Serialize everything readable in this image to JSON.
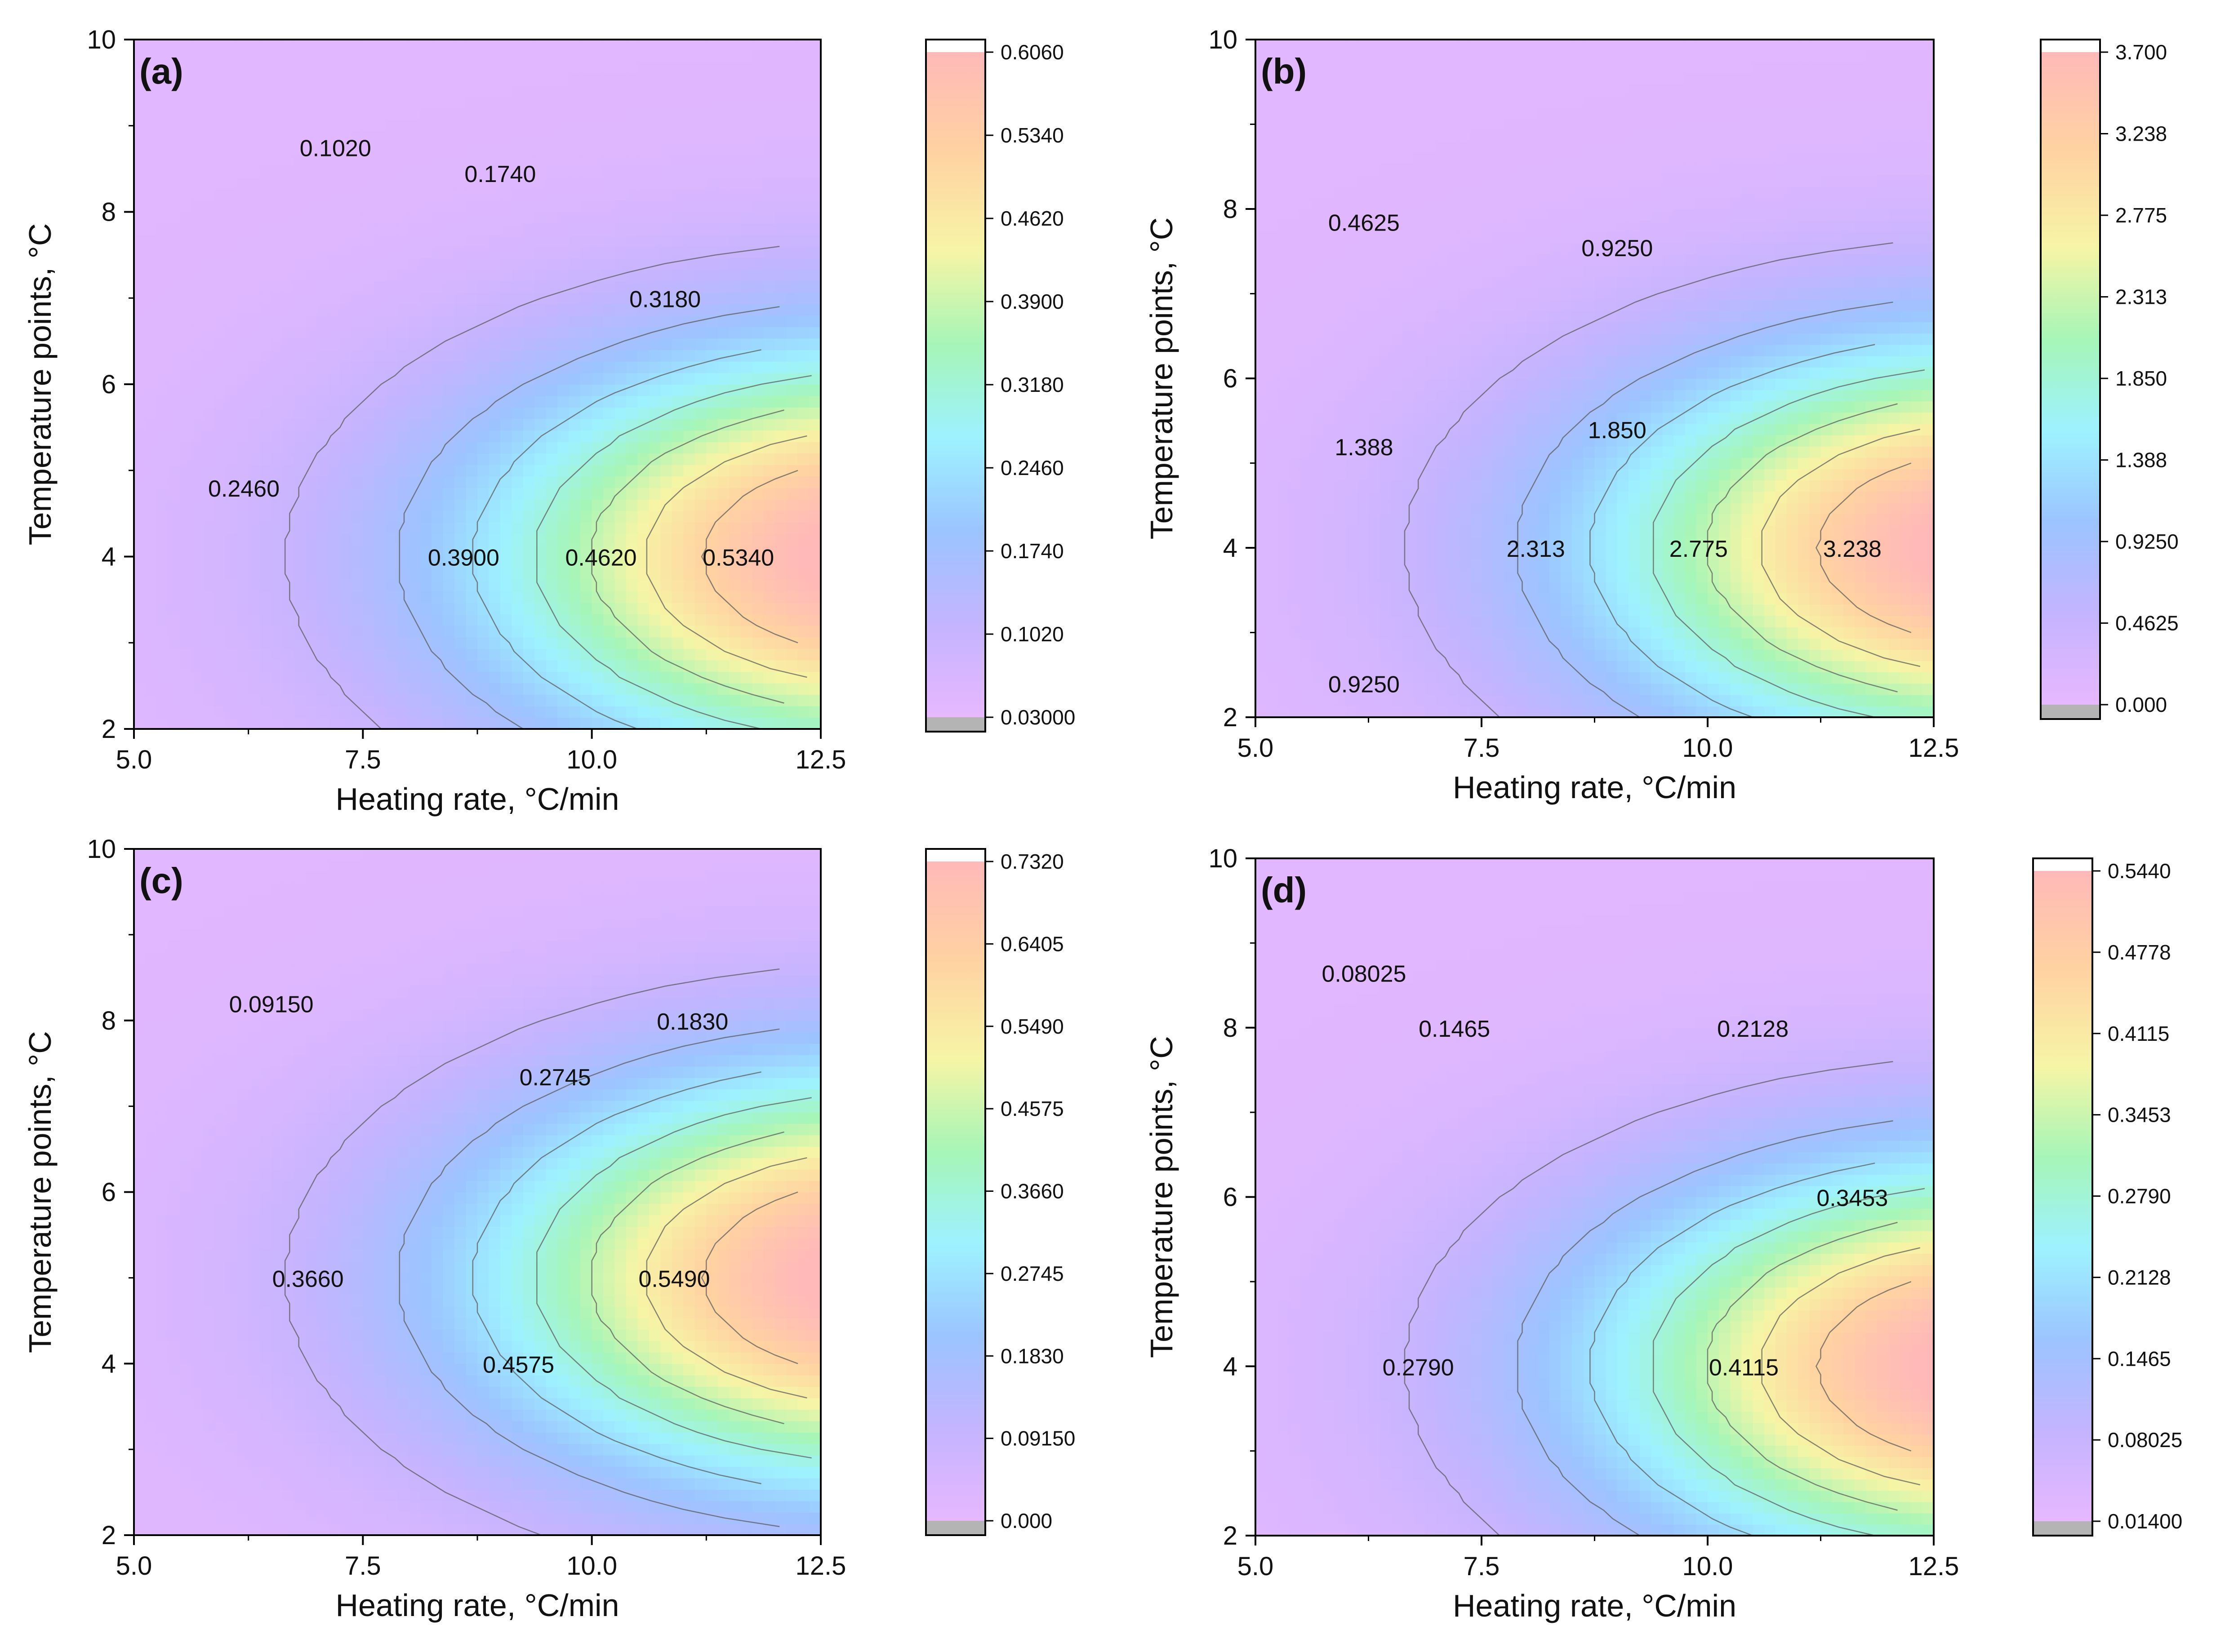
{
  "chart_data": [
    {
      "type": "heatmap",
      "panel_label": "(a)",
      "xlabel": "Heating rate, °C/min",
      "ylabel": "Temperature points, °C",
      "xlim": [
        5.0,
        12.5
      ],
      "ylim": [
        2,
        10
      ],
      "x_ticks": [
        "5.0",
        "7.5",
        "10.0",
        "12.5"
      ],
      "y_ticks": [
        "2",
        "4",
        "6",
        "8",
        "10"
      ],
      "peak": {
        "x": 12.5,
        "y": 4
      },
      "colorbar_levels": [
        "0.6060",
        "0.5340",
        "0.4620",
        "0.3900",
        "0.3180",
        "0.2460",
        "0.1740",
        "0.1020",
        "0.03000"
      ],
      "contour_labels": [
        {
          "text": "0.1020",
          "x": 7.2,
          "y": 8.75
        },
        {
          "text": "0.1740",
          "x": 9.0,
          "y": 8.45
        },
        {
          "text": "0.3180",
          "x": 10.8,
          "y": 7.0
        },
        {
          "text": "0.2460",
          "x": 6.2,
          "y": 4.8
        },
        {
          "text": "0.3900",
          "x": 8.6,
          "y": 4.0
        },
        {
          "text": "0.4620",
          "x": 10.1,
          "y": 4.0
        },
        {
          "text": "0.5340",
          "x": 11.6,
          "y": 4.0
        }
      ]
    },
    {
      "type": "heatmap",
      "panel_label": "(b)",
      "xlabel": "Heating rate, °C/min",
      "ylabel": "Temperature points, °C",
      "xlim": [
        5.0,
        12.5
      ],
      "ylim": [
        2,
        10
      ],
      "x_ticks": [
        "5.0",
        "7.5",
        "10.0",
        "12.5"
      ],
      "y_ticks": [
        "2",
        "4",
        "6",
        "8",
        "10"
      ],
      "peak": {
        "x": 12.5,
        "y": 4
      },
      "colorbar_levels": [
        "3.700",
        "3.238",
        "2.775",
        "2.313",
        "1.850",
        "1.388",
        "0.9250",
        "0.4625",
        "0.000"
      ],
      "contour_labels": [
        {
          "text": "0.4625",
          "x": 6.2,
          "y": 7.85
        },
        {
          "text": "0.9250",
          "x": 9.0,
          "y": 7.55
        },
        {
          "text": "1.388",
          "x": 6.2,
          "y": 5.2
        },
        {
          "text": "1.850",
          "x": 9.0,
          "y": 5.4
        },
        {
          "text": "2.313",
          "x": 8.1,
          "y": 4.0
        },
        {
          "text": "2.775",
          "x": 9.9,
          "y": 4.0
        },
        {
          "text": "3.238",
          "x": 11.6,
          "y": 4.0
        },
        {
          "text": "0.9250",
          "x": 6.2,
          "y": 2.4
        }
      ]
    },
    {
      "type": "heatmap",
      "panel_label": "(c)",
      "xlabel": "Heating rate, °C/min",
      "ylabel": "Temperature points, °C",
      "xlim": [
        5.0,
        12.5
      ],
      "ylim": [
        2,
        10
      ],
      "x_ticks": [
        "5.0",
        "7.5",
        "10.0",
        "12.5"
      ],
      "y_ticks": [
        "2",
        "4",
        "6",
        "8",
        "10"
      ],
      "peak": {
        "x": 12.5,
        "y": 5
      },
      "colorbar_levels": [
        "0.7320",
        "0.6405",
        "0.5490",
        "0.4575",
        "0.3660",
        "0.2745",
        "0.1830",
        "0.09150",
        "0.000"
      ],
      "contour_labels": [
        {
          "text": "0.09150",
          "x": 6.5,
          "y": 8.2
        },
        {
          "text": "0.1830",
          "x": 11.1,
          "y": 8.0
        },
        {
          "text": "0.2745",
          "x": 9.6,
          "y": 7.35
        },
        {
          "text": "0.3660",
          "x": 6.9,
          "y": 5.0
        },
        {
          "text": "0.5490",
          "x": 10.9,
          "y": 5.0
        },
        {
          "text": "0.4575",
          "x": 9.2,
          "y": 4.0
        }
      ]
    },
    {
      "type": "heatmap",
      "panel_label": "(d)",
      "xlabel": "Heating rate, °C/min",
      "ylabel": "Temperature points, °C",
      "xlim": [
        5.0,
        12.5
      ],
      "ylim": [
        2,
        10
      ],
      "x_ticks": [
        "5.0",
        "7.5",
        "10.0",
        "12.5"
      ],
      "y_ticks": [
        "2",
        "4",
        "6",
        "8",
        "10"
      ],
      "peak": {
        "x": 12.5,
        "y": 4
      },
      "colorbar_levels": [
        "0.5440",
        "0.4778",
        "0.4115",
        "0.3453",
        "0.2790",
        "0.2128",
        "0.1465",
        "0.08025",
        "0.01400"
      ],
      "contour_labels": [
        {
          "text": "0.08025",
          "x": 6.2,
          "y": 8.65
        },
        {
          "text": "0.1465",
          "x": 7.2,
          "y": 8.0
        },
        {
          "text": "0.2128",
          "x": 10.5,
          "y": 8.0
        },
        {
          "text": "0.3453",
          "x": 11.6,
          "y": 6.0
        },
        {
          "text": "0.2790",
          "x": 6.8,
          "y": 4.0
        },
        {
          "text": "0.4115",
          "x": 10.4,
          "y": 4.0
        }
      ]
    }
  ]
}
